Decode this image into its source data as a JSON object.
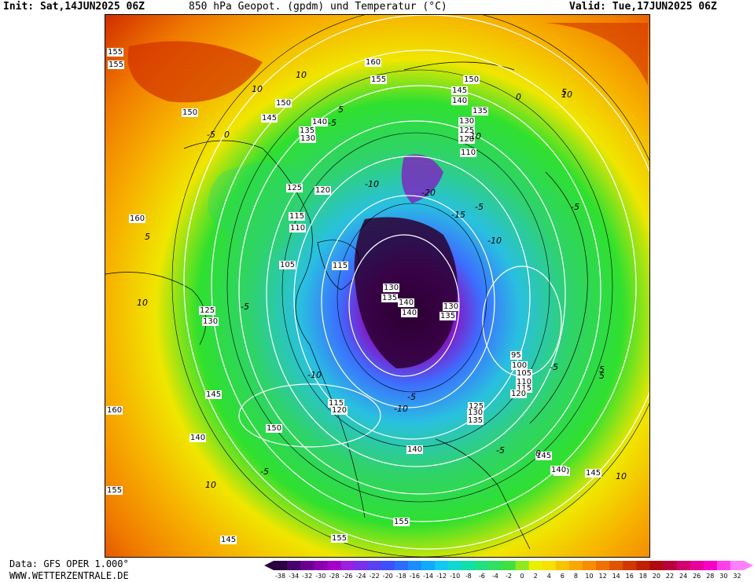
{
  "header": {
    "init": "Init: Sat,14JUN2025 06Z",
    "title": "850 hPa Geopot. (gpdm) und Temperatur (°C)",
    "valid": "Valid: Tue,17JUN2025 06Z"
  },
  "footer": {
    "data_source": "Data: GFS OPER 1.000°",
    "website": "WWW.WETTERZENTRALE.DE"
  },
  "colors": {
    "polar_core": "#3a0040",
    "deep_cold": "#7f1fbf",
    "cold": "#3c6fff",
    "cool": "#29c0e0",
    "mild": "#2fd36a",
    "neutral": "#2fe02f",
    "warm": "#f0e600",
    "hot": "#f79a00",
    "very_hot": "#d23000",
    "isohypse": "#ffffff",
    "isotherm": "#000000"
  },
  "geopotential_labels": [
    "155",
    "155",
    "160",
    "155",
    "150",
    "145",
    "140",
    "135",
    "150",
    "150",
    "145",
    "140",
    "135",
    "130",
    "130",
    "125",
    "120",
    "110",
    "125",
    "120",
    "115",
    "110",
    "105",
    "115",
    "130",
    "135",
    "140",
    "140",
    "130",
    "135",
    "125",
    "130",
    "160",
    "145",
    "150",
    "140",
    "140",
    "145",
    "150",
    "155",
    "155",
    "145",
    "115",
    "120",
    "95",
    "100",
    "105",
    "110",
    "115",
    "120",
    "125",
    "130",
    "135",
    "140",
    "145",
    "160",
    "155"
  ],
  "temperature_labels": [
    "10",
    "10",
    "5",
    "5",
    "0",
    "0",
    "-5",
    "-5",
    "-10",
    "-10",
    "-15",
    "-20",
    "-5",
    "-10",
    "-5",
    "10",
    "5",
    "-5",
    "-10",
    "-5",
    "-10",
    "-5",
    "5",
    "10",
    "10",
    "-5",
    "-5",
    "0",
    "5",
    "10"
  ],
  "color_scale": {
    "ticks": [
      "-38",
      "-34",
      "-32",
      "-30",
      "-28",
      "-26",
      "-24",
      "-22",
      "-20",
      "-18",
      "-16",
      "-14",
      "-12",
      "-10",
      "-8",
      "-6",
      "-4",
      "-2",
      "0",
      "2",
      "4",
      "6",
      "8",
      "10",
      "12",
      "14",
      "16",
      "18",
      "20",
      "22",
      "24",
      "26",
      "28",
      "30",
      "32"
    ],
    "colors": [
      "#2a0040",
      "#4a006a",
      "#6a0090",
      "#8a00b0",
      "#a600c8",
      "#9a20e0",
      "#7830e8",
      "#5a40f0",
      "#3c50ff",
      "#2c6cff",
      "#1c8cff",
      "#10aaff",
      "#10c8f0",
      "#10d8d0",
      "#10e0a8",
      "#20e080",
      "#30e060",
      "#40e040",
      "#90e820",
      "#e8f000",
      "#f8e000",
      "#f8c400",
      "#f8a800",
      "#f88c00",
      "#f07000",
      "#e05400",
      "#d03800",
      "#c02000",
      "#b00c10",
      "#b8003c",
      "#d0006c",
      "#e8009c",
      "#f800c8",
      "#ff40e8",
      "#ff80ff"
    ]
  }
}
